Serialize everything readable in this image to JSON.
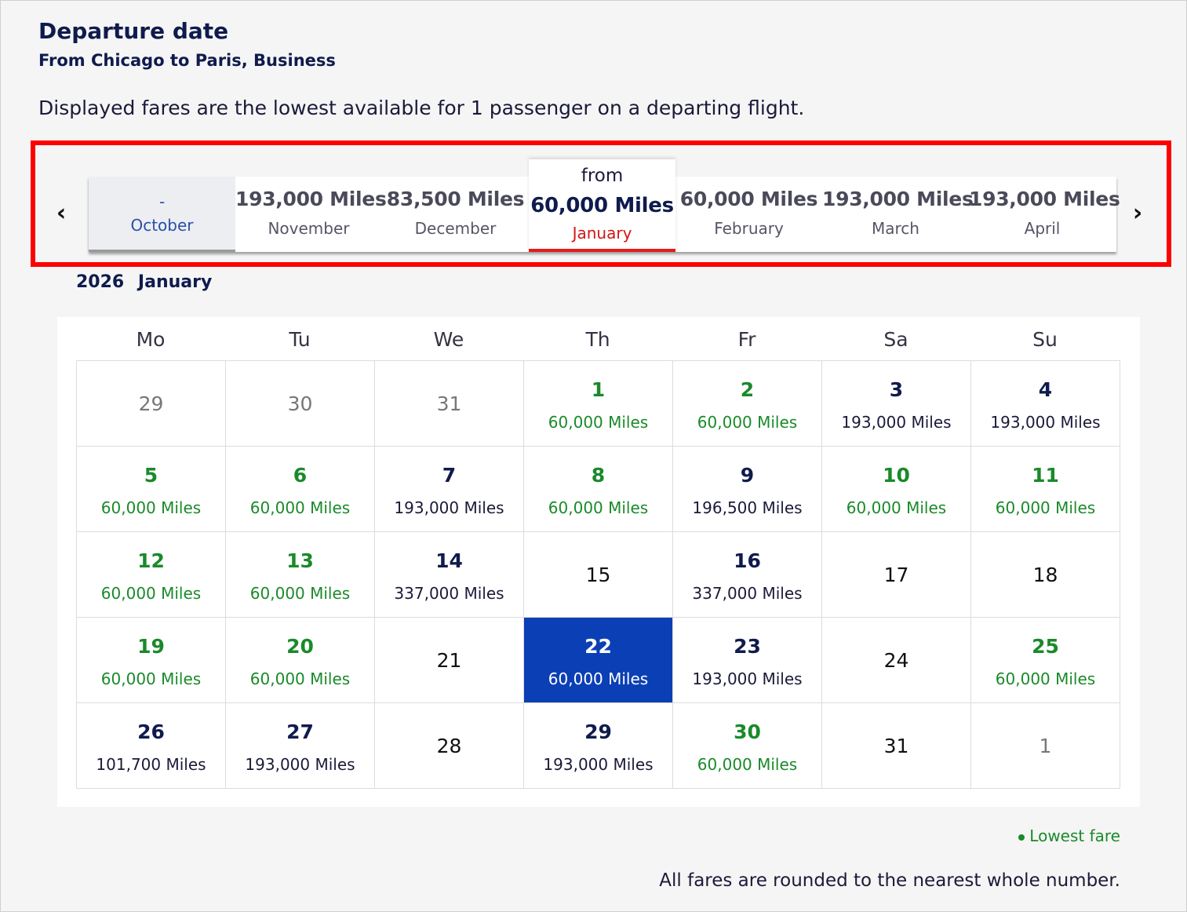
{
  "header": {
    "title": "Departure date",
    "subtitle": "From Chicago to Paris, Business",
    "note": "Displayed fares are the lowest available for 1 passenger on a departing flight."
  },
  "carousel": {
    "prev_icon": "chevron-left-icon",
    "next_icon": "chevron-right-icon",
    "prev_glyph": "‹",
    "next_glyph": "›",
    "months": [
      {
        "miles": "-",
        "name": "October",
        "state": "empty"
      },
      {
        "miles": "193,000 Miles",
        "name": "November",
        "state": "normal"
      },
      {
        "miles": "83,500 Miles",
        "name": "December",
        "state": "normal"
      },
      {
        "from": "from",
        "miles": "60,000 Miles",
        "name": "January",
        "state": "selected"
      },
      {
        "miles": "60,000 Miles",
        "name": "February",
        "state": "normal"
      },
      {
        "miles": "193,000 Miles",
        "name": "March",
        "state": "normal"
      },
      {
        "miles": "193,000 Miles",
        "name": "April",
        "state": "normal"
      }
    ],
    "highlight_color": "#ff0000"
  },
  "calendar": {
    "year": "2026",
    "month": "January",
    "weekdays": [
      "Mo",
      "Tu",
      "We",
      "Th",
      "Fr",
      "Sa",
      "Su"
    ],
    "days": [
      {
        "day": "29",
        "price": "",
        "type": "other"
      },
      {
        "day": "30",
        "price": "",
        "type": "other"
      },
      {
        "day": "31",
        "price": "",
        "type": "other"
      },
      {
        "day": "1",
        "price": "60,000 Miles",
        "type": "green"
      },
      {
        "day": "2",
        "price": "60,000 Miles",
        "type": "green"
      },
      {
        "day": "3",
        "price": "193,000 Miles",
        "type": "normal"
      },
      {
        "day": "4",
        "price": "193,000 Miles",
        "type": "normal"
      },
      {
        "day": "5",
        "price": "60,000 Miles",
        "type": "green"
      },
      {
        "day": "6",
        "price": "60,000 Miles",
        "type": "green"
      },
      {
        "day": "7",
        "price": "193,000 Miles",
        "type": "normal"
      },
      {
        "day": "8",
        "price": "60,000 Miles",
        "type": "green"
      },
      {
        "day": "9",
        "price": "196,500 Miles",
        "type": "normal"
      },
      {
        "day": "10",
        "price": "60,000 Miles",
        "type": "green"
      },
      {
        "day": "11",
        "price": "60,000 Miles",
        "type": "green"
      },
      {
        "day": "12",
        "price": "60,000 Miles",
        "type": "green"
      },
      {
        "day": "13",
        "price": "60,000 Miles",
        "type": "green"
      },
      {
        "day": "14",
        "price": "337,000 Miles",
        "type": "normal"
      },
      {
        "day": "15",
        "price": "",
        "type": "nofare"
      },
      {
        "day": "16",
        "price": "337,000 Miles",
        "type": "normal"
      },
      {
        "day": "17",
        "price": "",
        "type": "nofare"
      },
      {
        "day": "18",
        "price": "",
        "type": "nofare"
      },
      {
        "day": "19",
        "price": "60,000 Miles",
        "type": "green"
      },
      {
        "day": "20",
        "price": "60,000 Miles",
        "type": "green"
      },
      {
        "day": "21",
        "price": "",
        "type": "nofare"
      },
      {
        "day": "22",
        "price": "60,000 Miles",
        "type": "selected"
      },
      {
        "day": "23",
        "price": "193,000 Miles",
        "type": "normal"
      },
      {
        "day": "24",
        "price": "",
        "type": "nofare"
      },
      {
        "day": "25",
        "price": "60,000 Miles",
        "type": "green"
      },
      {
        "day": "26",
        "price": "101,700 Miles",
        "type": "normal"
      },
      {
        "day": "27",
        "price": "193,000 Miles",
        "type": "normal"
      },
      {
        "day": "28",
        "price": "",
        "type": "nofare"
      },
      {
        "day": "29",
        "price": "193,000 Miles",
        "type": "normal"
      },
      {
        "day": "30",
        "price": "60,000 Miles",
        "type": "green"
      },
      {
        "day": "31",
        "price": "",
        "type": "nofare"
      },
      {
        "day": "1",
        "price": "",
        "type": "other"
      }
    ],
    "colors": {
      "lowest": "#1a8a2a",
      "selected_bg": "#0b3fb5",
      "selected_month_underline": "#e31b1b"
    }
  },
  "legend": {
    "label": "Lowest fare"
  },
  "footnote": "All fares are rounded to the nearest whole number."
}
